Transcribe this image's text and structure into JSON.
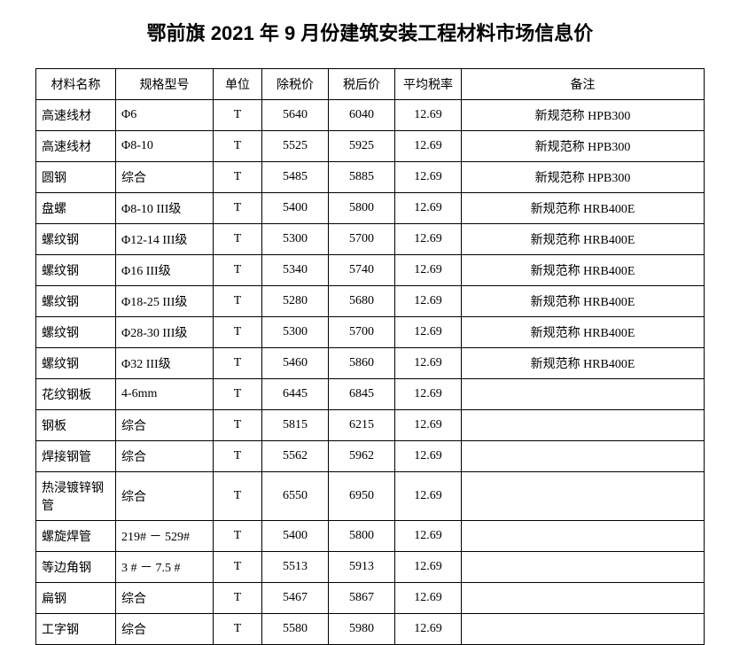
{
  "title": "鄂前旗 2021 年 9 月份建筑安装工程材料市场信息价",
  "columns": [
    "材料名称",
    "规格型号",
    "单位",
    "除税价",
    "税后价",
    "平均税率",
    "备注"
  ],
  "rows": [
    {
      "name": "高速线材",
      "spec": "Φ6",
      "unit": "T",
      "price_ex": "5640",
      "price_in": "6040",
      "rate": "12.69",
      "note": "新规范称 HPB300"
    },
    {
      "name": "高速线材",
      "spec": "Φ8-10",
      "unit": "T",
      "price_ex": "5525",
      "price_in": "5925",
      "rate": "12.69",
      "note": "新规范称 HPB300"
    },
    {
      "name": "圆钢",
      "spec": "综合",
      "unit": "T",
      "price_ex": "5485",
      "price_in": "5885",
      "rate": "12.69",
      "note": "新规范称 HPB300"
    },
    {
      "name": "盘螺",
      "spec": "Φ8-10 III级",
      "unit": "T",
      "price_ex": "5400",
      "price_in": "5800",
      "rate": "12.69",
      "note": "新规范称 HRB400E"
    },
    {
      "name": "螺纹钢",
      "spec": "Φ12-14 III级",
      "unit": "T",
      "price_ex": "5300",
      "price_in": "5700",
      "rate": "12.69",
      "note": "新规范称 HRB400E"
    },
    {
      "name": "螺纹钢",
      "spec": "Φ16 III级",
      "unit": "T",
      "price_ex": "5340",
      "price_in": "5740",
      "rate": "12.69",
      "note": "新规范称 HRB400E"
    },
    {
      "name": "螺纹钢",
      "spec": "Φ18-25 III级",
      "unit": "T",
      "price_ex": "5280",
      "price_in": "5680",
      "rate": "12.69",
      "note": "新规范称 HRB400E"
    },
    {
      "name": "螺纹钢",
      "spec": "Φ28-30 III级",
      "unit": "T",
      "price_ex": "5300",
      "price_in": "5700",
      "rate": "12.69",
      "note": "新规范称 HRB400E"
    },
    {
      "name": "螺纹钢",
      "spec": "Φ32 III级",
      "unit": "T",
      "price_ex": "5460",
      "price_in": "5860",
      "rate": "12.69",
      "note": "新规范称 HRB400E"
    },
    {
      "name": "花纹钢板",
      "spec": "4-6mm",
      "unit": "T",
      "price_ex": "6445",
      "price_in": "6845",
      "rate": "12.69",
      "note": ""
    },
    {
      "name": "钢板",
      "spec": "综合",
      "unit": "T",
      "price_ex": "5815",
      "price_in": "6215",
      "rate": "12.69",
      "note": ""
    },
    {
      "name": "焊接钢管",
      "spec": "综合",
      "unit": "T",
      "price_ex": "5562",
      "price_in": "5962",
      "rate": "12.69",
      "note": ""
    },
    {
      "name": "热浸镀锌钢管",
      "spec": "综合",
      "unit": "T",
      "price_ex": "6550",
      "price_in": "6950",
      "rate": "12.69",
      "note": ""
    },
    {
      "name": "螺旋焊管",
      "spec": "219# － 529#",
      "unit": "T",
      "price_ex": "5400",
      "price_in": "5800",
      "rate": "12.69",
      "note": ""
    },
    {
      "name": "等边角钢",
      "spec": "3 # － 7.5 #",
      "unit": "T",
      "price_ex": "5513",
      "price_in": "5913",
      "rate": "12.69",
      "note": ""
    },
    {
      "name": "扁钢",
      "spec": "综合",
      "unit": "T",
      "price_ex": "5467",
      "price_in": "5867",
      "rate": "12.69",
      "note": ""
    },
    {
      "name": "工字钢",
      "spec": "综合",
      "unit": "T",
      "price_ex": "5580",
      "price_in": "5980",
      "rate": "12.69",
      "note": ""
    }
  ]
}
